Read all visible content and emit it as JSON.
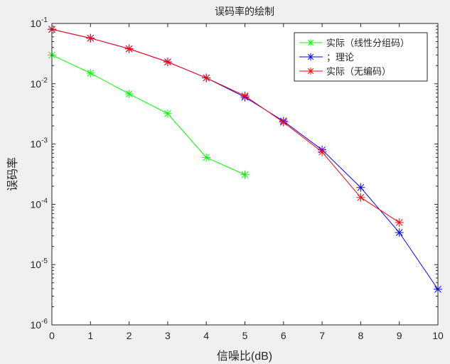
{
  "chart_data": {
    "type": "line",
    "title": "误码率的绘制",
    "xlabel": "信噪比(dB)",
    "ylabel": "误码率",
    "xlim": [
      0,
      10
    ],
    "ylim": [
      1e-06,
      0.1
    ],
    "yscale": "log",
    "grid": false,
    "legend_position": "northeast",
    "x_ticks": [
      "0",
      "1",
      "2",
      "3",
      "4",
      "5",
      "6",
      "7",
      "8",
      "9",
      "10"
    ],
    "y_ticks": [
      {
        "base": "10",
        "exp": "-1",
        "value": 0.1
      },
      {
        "base": "10",
        "exp": "-2",
        "value": 0.01
      },
      {
        "base": "10",
        "exp": "-3",
        "value": 0.001
      },
      {
        "base": "10",
        "exp": "-4",
        "value": 0.0001
      },
      {
        "base": "10",
        "exp": "-5",
        "value": 1e-05
      },
      {
        "base": "10",
        "exp": "-6",
        "value": 1e-06
      }
    ],
    "series": [
      {
        "name": "实际（线性分组码）",
        "color": "#00ff00",
        "marker": "*",
        "x": [
          0,
          1,
          2,
          3,
          4,
          5
        ],
        "values": [
          0.03,
          0.015,
          0.0068,
          0.0032,
          0.0006,
          0.00031
        ]
      },
      {
        "name": "；理论",
        "color": "#0000ff",
        "marker": "*",
        "x": [
          0,
          1,
          2,
          3,
          4,
          5,
          6,
          7,
          8,
          9,
          10
        ],
        "values": [
          0.08,
          0.057,
          0.038,
          0.023,
          0.0125,
          0.006,
          0.0024,
          0.0008,
          0.00019,
          3.4e-05,
          3.9e-06
        ]
      },
      {
        "name": "实际（无编码）",
        "color": "#ff0000",
        "marker": "*",
        "x": [
          0,
          1,
          2,
          3,
          4,
          5,
          6,
          7,
          8,
          9
        ],
        "values": [
          0.08,
          0.057,
          0.038,
          0.023,
          0.0125,
          0.0063,
          0.0023,
          0.00074,
          0.00013,
          5e-05
        ]
      }
    ]
  }
}
